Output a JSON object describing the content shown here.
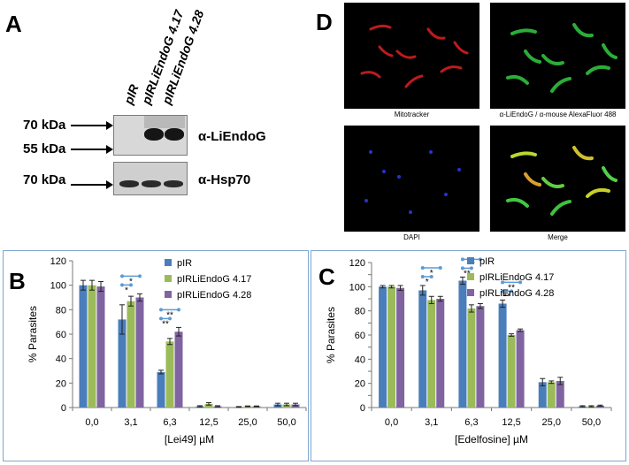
{
  "panels": {
    "A": "A",
    "B": "B",
    "C": "C",
    "D": "D"
  },
  "western_blot": {
    "lanes": [
      "pIR",
      "pIRLiEndoG 4.17",
      "pIRLiEndoG 4.28"
    ],
    "markers_top": [
      "70 kDa",
      "55 kDa"
    ],
    "markers_bottom": [
      "70 kDa"
    ],
    "antibody_top": "α-LiEndoG",
    "antibody_bottom": "α-Hsp70"
  },
  "microscopy": {
    "captions": [
      "Mitotracker",
      "α-LiEndoG / α-mouse AlexaFluor 488",
      "DAPI",
      "Merge"
    ],
    "colors": [
      "#ff2a2a",
      "#39d24a",
      "#3a4dff",
      "merge"
    ]
  },
  "series_colors": [
    "#4a7ebb",
    "#9bbb59",
    "#8064a2"
  ],
  "chart_data": [
    {
      "type": "bar",
      "categories": [
        "0,0",
        "3,1",
        "6,3",
        "12,5",
        "25,0",
        "50,0"
      ],
      "series": [
        {
          "name": "pIR",
          "values": [
            100,
            72,
            29,
            1,
            0.5,
            2.5
          ],
          "errors": [
            4,
            12,
            1.5,
            0.5,
            0.3,
            1
          ]
        },
        {
          "name": "pIRLiEndoG 4.17",
          "values": [
            100,
            87,
            54,
            3,
            1,
            2.5
          ],
          "errors": [
            4,
            4,
            2.5,
            1,
            0.3,
            1
          ]
        },
        {
          "name": "pIRLiEndoG 4.28",
          "values": [
            99,
            90,
            62,
            1,
            1,
            2.5
          ],
          "errors": [
            4,
            3,
            3.5,
            0.5,
            0.3,
            1
          ]
        }
      ],
      "significance": [
        {
          "category": "3,1",
          "marks": [
            "*",
            "*"
          ]
        },
        {
          "category": "6,3",
          "marks": [
            "**",
            "**"
          ]
        }
      ],
      "xlabel": "[Lei49] µM",
      "ylabel": "% Parasites",
      "ylim": [
        0,
        120
      ],
      "yticks": [
        0,
        20,
        40,
        60,
        80,
        100,
        120
      ],
      "legend": "top-right"
    },
    {
      "type": "bar",
      "categories": [
        "0,0",
        "3,1",
        "6,3",
        "12,5",
        "25,0",
        "50,0"
      ],
      "series": [
        {
          "name": "pIR",
          "values": [
            100,
            97,
            105,
            86,
            21,
            1
          ],
          "errors": [
            1,
            4,
            3,
            3,
            3,
            0.5
          ]
        },
        {
          "name": "pIRLiEndoG 4.17",
          "values": [
            100,
            89,
            82,
            60,
            21,
            1
          ],
          "errors": [
            1,
            3,
            3,
            1,
            1,
            0.5
          ]
        },
        {
          "name": "pIRLiEndoG 4.28",
          "values": [
            99,
            90,
            84,
            64,
            22,
            1.5
          ],
          "errors": [
            2,
            2,
            2,
            1,
            3,
            0.5
          ]
        }
      ],
      "significance": [
        {
          "category": "3,1",
          "marks": [
            "*",
            "*"
          ]
        },
        {
          "category": "6,3",
          "marks": [
            "**",
            "**"
          ]
        },
        {
          "category": "12,5",
          "marks": [
            "**",
            "**"
          ]
        }
      ],
      "xlabel": "[Edelfosine] µM",
      "ylabel": "% Parasites",
      "ylim": [
        0,
        120
      ],
      "yticks": [
        0,
        10,
        20,
        30,
        40,
        50,
        60,
        70,
        80,
        90,
        100,
        110,
        120
      ],
      "yticks_labeled": [
        0,
        20,
        40,
        60,
        80,
        100,
        120
      ],
      "legend": "top-right"
    }
  ]
}
